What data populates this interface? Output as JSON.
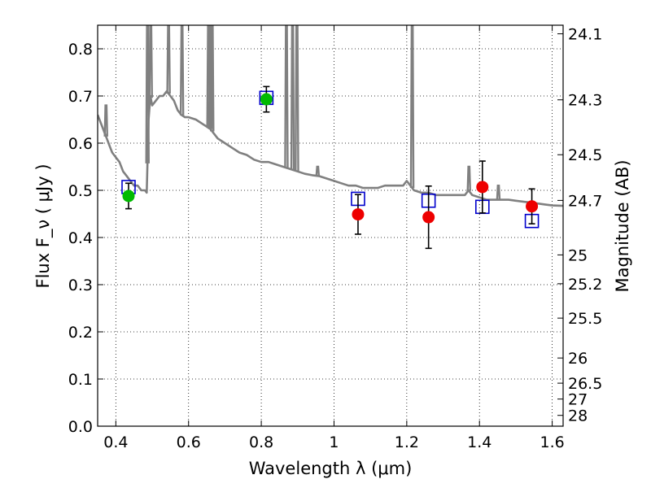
{
  "chart_data": {
    "type": "scatter",
    "xlabel": "Wavelength  λ (μm)",
    "ylabel": "Flux  F_ν  ( μJy )",
    "y2label": "Magnitude (AB)",
    "xlim": [
      0.35,
      1.63
    ],
    "ylim": [
      0.0,
      0.85
    ],
    "grid": true,
    "x_ticks": [
      0.4,
      0.6,
      0.8,
      1.0,
      1.2,
      1.4,
      1.6
    ],
    "x_tick_labels": [
      "0.4",
      "0.6",
      "0.8",
      "1",
      "1.2",
      "1.4",
      "1.6"
    ],
    "y_ticks": [
      0.0,
      0.1,
      0.2,
      0.3,
      0.4,
      0.5,
      0.6,
      0.7,
      0.8
    ],
    "y_tick_labels": [
      "0.0",
      "0.1",
      "0.2",
      "0.3",
      "0.4",
      "0.5",
      "0.6",
      "0.7",
      "0.8"
    ],
    "mag_ticks": [
      "24.1",
      "24.3",
      "24.5",
      "24.7",
      "25",
      "25.2",
      "25.5",
      "26",
      "26.5",
      "27",
      "28"
    ],
    "colors": {
      "spectrum": "#808080",
      "green_points": "#00bb00",
      "red_points": "#ee0000",
      "model_boxes": "#0000cc",
      "error_bars": "#000000"
    },
    "series": [
      {
        "values": [
          {
            "x": 0.435,
            "y": 0.488,
            "yerr": 0.027
          },
          {
            "x": 0.814,
            "y": 0.693,
            "yerr": 0.027
          }
        ]
      },
      {
        "values": [
          {
            "x": 1.066,
            "y": 0.449,
            "yerr": 0.042
          },
          {
            "x": 1.26,
            "y": 0.443,
            "yerr": 0.066
          },
          {
            "x": 1.408,
            "y": 0.507,
            "yerr": 0.055
          },
          {
            "x": 1.544,
            "y": 0.466,
            "yerr": 0.037
          }
        ]
      },
      {
        "values": [
          {
            "x": 0.435,
            "y": 0.507
          },
          {
            "x": 0.814,
            "y": 0.696
          },
          {
            "x": 1.066,
            "y": 0.482
          },
          {
            "x": 1.26,
            "y": 0.478
          },
          {
            "x": 1.408,
            "y": 0.465
          },
          {
            "x": 1.544,
            "y": 0.435
          }
        ]
      }
    ],
    "spectrum": [
      [
        0.35,
        0.66
      ],
      [
        0.36,
        0.64
      ],
      [
        0.37,
        0.62
      ],
      [
        0.375,
        0.61
      ],
      [
        0.38,
        0.6
      ],
      [
        0.385,
        0.59
      ],
      [
        0.39,
        0.58
      ],
      [
        0.4,
        0.57
      ],
      [
        0.41,
        0.56
      ],
      [
        0.42,
        0.54
      ],
      [
        0.43,
        0.53
      ],
      [
        0.44,
        0.52
      ],
      [
        0.45,
        0.51
      ],
      [
        0.46,
        0.51
      ],
      [
        0.47,
        0.5
      ],
      [
        0.48,
        0.5
      ],
      [
        0.485,
        0.495
      ],
      [
        0.49,
        0.65
      ],
      [
        0.495,
        0.7
      ],
      [
        0.5,
        0.68
      ],
      [
        0.51,
        0.69
      ],
      [
        0.52,
        0.7
      ],
      [
        0.53,
        0.7
      ],
      [
        0.54,
        0.71
      ],
      [
        0.55,
        0.7
      ],
      [
        0.56,
        0.69
      ],
      [
        0.57,
        0.67
      ],
      [
        0.58,
        0.66
      ],
      [
        0.59,
        0.655
      ],
      [
        0.6,
        0.655
      ],
      [
        0.62,
        0.65
      ],
      [
        0.64,
        0.64
      ],
      [
        0.66,
        0.63
      ],
      [
        0.68,
        0.61
      ],
      [
        0.7,
        0.6
      ],
      [
        0.72,
        0.59
      ],
      [
        0.74,
        0.58
      ],
      [
        0.76,
        0.575
      ],
      [
        0.78,
        0.565
      ],
      [
        0.8,
        0.56
      ],
      [
        0.82,
        0.56
      ],
      [
        0.84,
        0.555
      ],
      [
        0.86,
        0.55
      ],
      [
        0.88,
        0.545
      ],
      [
        0.9,
        0.54
      ],
      [
        0.92,
        0.535
      ],
      [
        0.94,
        0.532
      ],
      [
        0.96,
        0.53
      ],
      [
        0.98,
        0.525
      ],
      [
        1.0,
        0.52
      ],
      [
        1.02,
        0.515
      ],
      [
        1.04,
        0.51
      ],
      [
        1.06,
        0.51
      ],
      [
        1.08,
        0.505
      ],
      [
        1.1,
        0.505
      ],
      [
        1.12,
        0.505
      ],
      [
        1.14,
        0.51
      ],
      [
        1.16,
        0.51
      ],
      [
        1.18,
        0.51
      ],
      [
        1.19,
        0.51
      ],
      [
        1.2,
        0.52
      ],
      [
        1.21,
        0.51
      ],
      [
        1.22,
        0.5
      ],
      [
        1.24,
        0.495
      ],
      [
        1.26,
        0.495
      ],
      [
        1.28,
        0.49
      ],
      [
        1.3,
        0.49
      ],
      [
        1.32,
        0.49
      ],
      [
        1.34,
        0.49
      ],
      [
        1.36,
        0.49
      ],
      [
        1.37,
        0.5
      ],
      [
        1.38,
        0.49
      ],
      [
        1.4,
        0.485
      ],
      [
        1.42,
        0.48
      ],
      [
        1.44,
        0.48
      ],
      [
        1.46,
        0.48
      ],
      [
        1.48,
        0.48
      ],
      [
        1.5,
        0.478
      ],
      [
        1.52,
        0.476
      ],
      [
        1.54,
        0.474
      ],
      [
        1.56,
        0.472
      ],
      [
        1.58,
        0.47
      ],
      [
        1.6,
        0.468
      ],
      [
        1.63,
        0.467
      ]
    ],
    "spectrum_lines": [
      {
        "x": 0.373,
        "peak": 0.68
      },
      {
        "x": 0.487,
        "peak": 0.85
      },
      {
        "x": 0.496,
        "peak": 0.85
      },
      {
        "x": 0.545,
        "peak": 0.85
      },
      {
        "x": 0.582,
        "peak": 0.85
      },
      {
        "x": 0.655,
        "peak": 0.85
      },
      {
        "x": 0.66,
        "peak": 0.85
      },
      {
        "x": 0.665,
        "peak": 0.85
      },
      {
        "x": 0.869,
        "peak": 0.85
      },
      {
        "x": 0.886,
        "peak": 0.85
      },
      {
        "x": 0.898,
        "peak": 0.85
      },
      {
        "x": 0.955,
        "peak": 0.55
      },
      {
        "x": 1.215,
        "peak": 0.85
      },
      {
        "x": 1.371,
        "peak": 0.55
      },
      {
        "x": 1.452,
        "peak": 0.51
      }
    ]
  }
}
